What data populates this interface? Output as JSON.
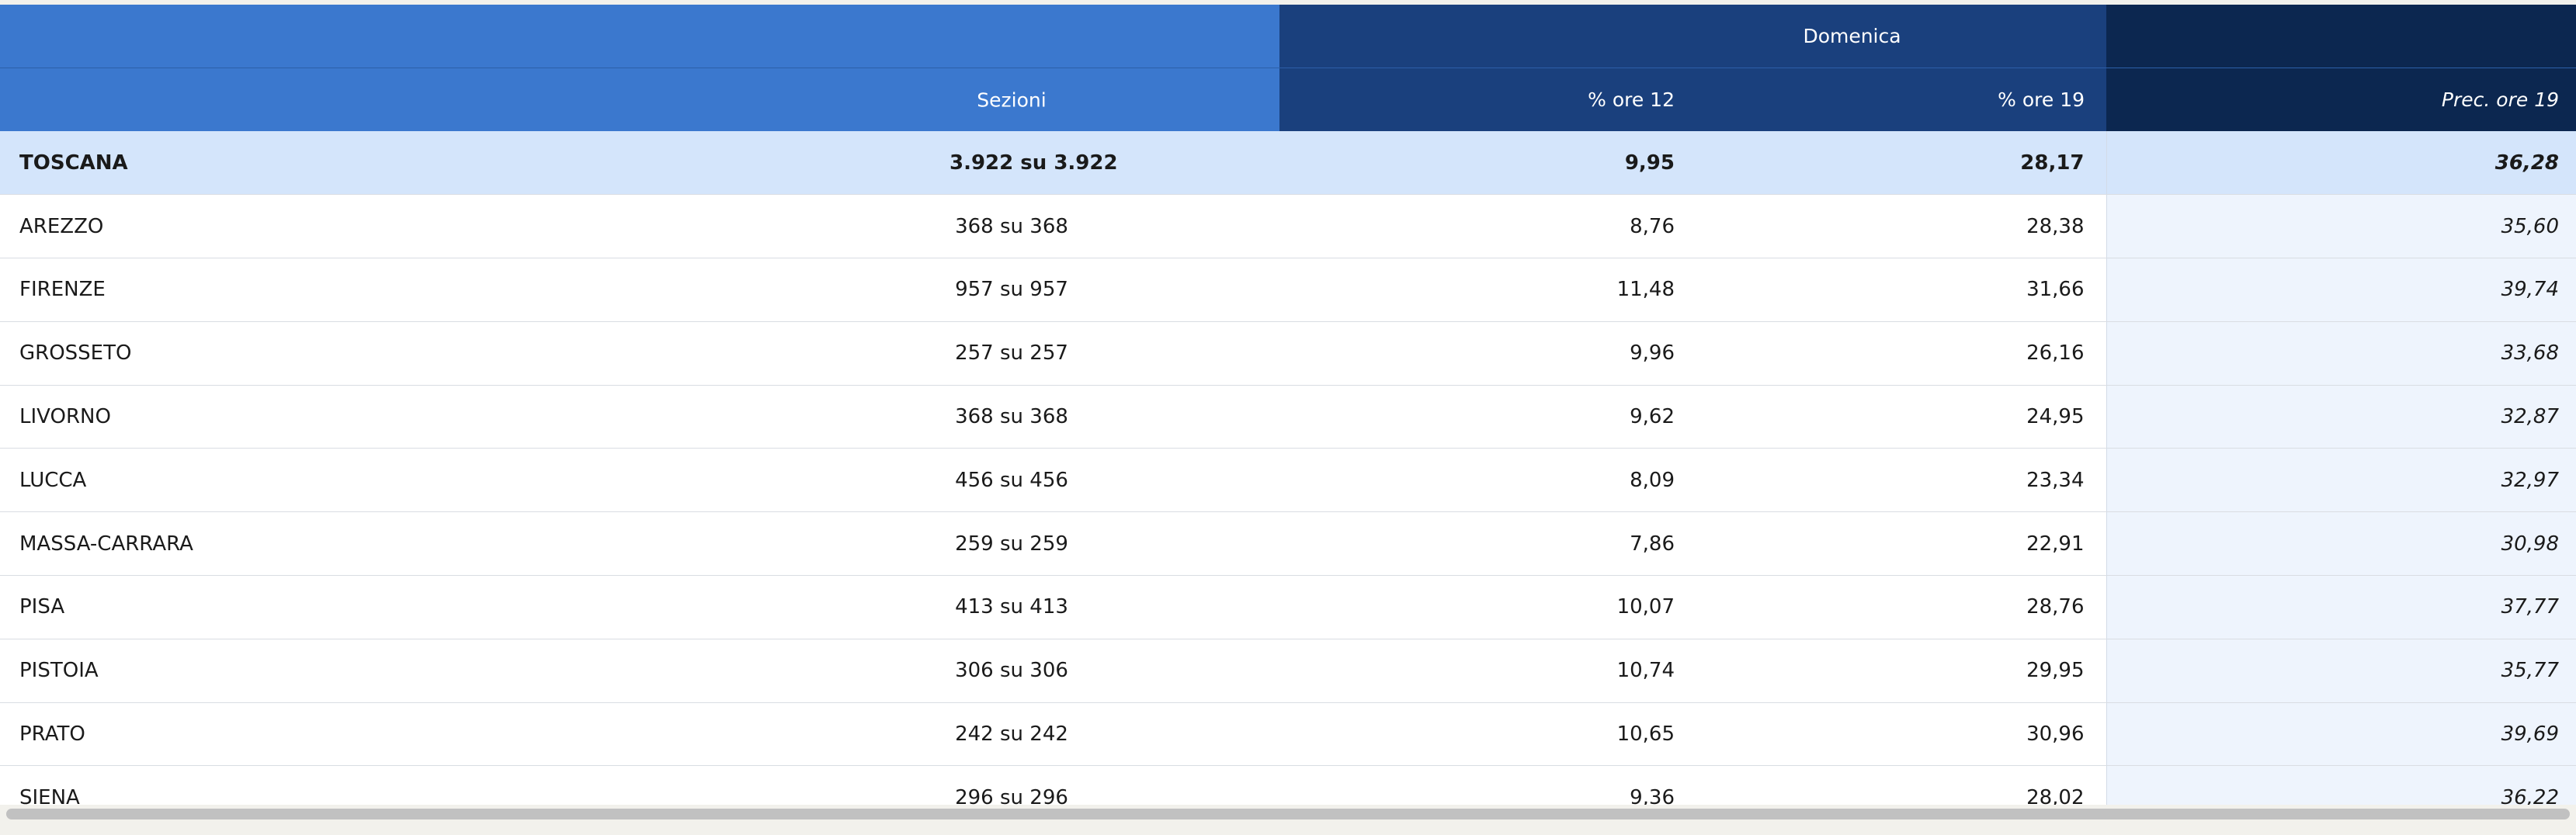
{
  "header": {
    "group_label": "Domenica",
    "col_sezioni": "Sezioni",
    "col_ore12": "% ore 12",
    "col_ore19": "% ore 19",
    "col_prec": "Prec. ore 19"
  },
  "total": {
    "name": "TOSCANA",
    "sezioni": "3.922 su 3.922",
    "ore12": "9,95",
    "ore19": "28,17",
    "prec": "36,28"
  },
  "rows": [
    {
      "name": "AREZZO",
      "sezioni": "368 su 368",
      "ore12": "8,76",
      "ore19": "28,38",
      "prec": "35,60"
    },
    {
      "name": "FIRENZE",
      "sezioni": "957 su 957",
      "ore12": "11,48",
      "ore19": "31,66",
      "prec": "39,74"
    },
    {
      "name": "GROSSETO",
      "sezioni": "257 su 257",
      "ore12": "9,96",
      "ore19": "26,16",
      "prec": "33,68"
    },
    {
      "name": "LIVORNO",
      "sezioni": "368 su 368",
      "ore12": "9,62",
      "ore19": "24,95",
      "prec": "32,87"
    },
    {
      "name": "LUCCA",
      "sezioni": "456 su 456",
      "ore12": "8,09",
      "ore19": "23,34",
      "prec": "32,97"
    },
    {
      "name": "MASSA-CARRARA",
      "sezioni": "259 su 259",
      "ore12": "7,86",
      "ore19": "22,91",
      "prec": "30,98"
    },
    {
      "name": "PISA",
      "sezioni": "413 su 413",
      "ore12": "10,07",
      "ore19": "28,76",
      "prec": "37,77"
    },
    {
      "name": "PISTOIA",
      "sezioni": "306 su 306",
      "ore12": "10,74",
      "ore19": "29,95",
      "prec": "35,77"
    },
    {
      "name": "PRATO",
      "sezioni": "242 su 242",
      "ore12": "10,65",
      "ore19": "30,96",
      "prec": "39,69"
    },
    {
      "name": "SIENA",
      "sezioni": "296 su 296",
      "ore12": "9,36",
      "ore19": "28,02",
      "prec": "36,22"
    }
  ],
  "colors": {
    "header_blue": "#3b78ce",
    "header_mid": "#1a407d",
    "header_dark": "#0c2750",
    "total_row": "#d4e5fb",
    "prec_column": "#eef4fd"
  }
}
